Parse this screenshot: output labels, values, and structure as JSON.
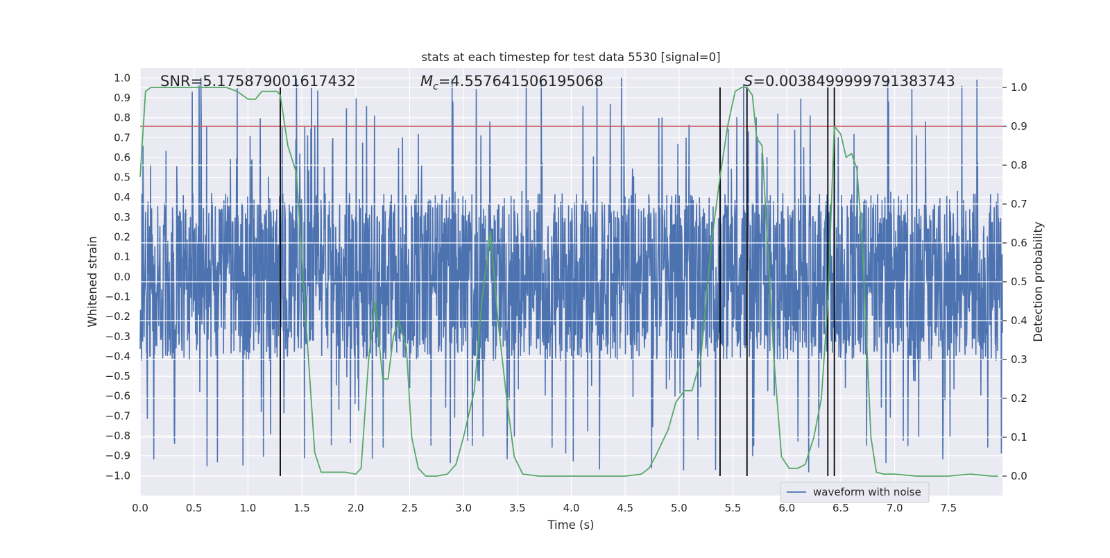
{
  "chart_data": {
    "type": "line",
    "title": "stats at each timestep for test data 5530 [signal=0]",
    "xlabel": "Time (s)",
    "ylabel_left": "Whitened strain",
    "ylabel_right": "Detection probability",
    "xlim": [
      0.0,
      8.0
    ],
    "ylim_left": [
      -1.1,
      1.05
    ],
    "ylim_right": [
      -0.05,
      1.05
    ],
    "x_ticks": [
      0.0,
      0.5,
      1.0,
      1.5,
      2.0,
      2.5,
      3.0,
      3.5,
      4.0,
      4.5,
      5.0,
      5.5,
      6.0,
      6.5,
      7.0,
      7.5
    ],
    "x_tick_labels": [
      "0.0",
      "0.5",
      "1.0",
      "1.5",
      "2.0",
      "2.5",
      "3.0",
      "3.5",
      "4.0",
      "4.5",
      "5.0",
      "5.5",
      "6.0",
      "6.5",
      "7.0",
      "7.5"
    ],
    "y_left_ticks": [
      1.0,
      0.9,
      0.8,
      0.7,
      0.6,
      0.5,
      0.4,
      0.3,
      0.2,
      0.1,
      0.0,
      -0.1,
      -0.2,
      -0.3,
      -0.4,
      -0.5,
      -0.6,
      -0.7,
      -0.8,
      -0.9,
      -1.0
    ],
    "y_left_tick_labels": [
      "1.0",
      "0.9",
      "0.8",
      "0.7",
      "0.6",
      "0.5",
      "0.4",
      "0.3",
      "0.2",
      "0.1",
      "0.0",
      "−0.1",
      "−0.2",
      "−0.3",
      "−0.4",
      "−0.5",
      "−0.6",
      "−0.7",
      "−0.8",
      "−0.9",
      "−1.0"
    ],
    "y_right_ticks": [
      1.0,
      0.9,
      0.8,
      0.7,
      0.6,
      0.5,
      0.4,
      0.3,
      0.2,
      0.1,
      0.0
    ],
    "y_right_tick_labels": [
      "1.0",
      "0.9",
      "0.8",
      "0.7",
      "0.6",
      "0.5",
      "0.4",
      "0.3",
      "0.2",
      "0.1",
      "0.0"
    ],
    "annotations": {
      "snr": "SNR=5.175879001617432",
      "mc_symbol": "M",
      "mc_subscript": "c",
      "mc_value": "=4.557641506195068",
      "s_symbol": "S",
      "s_value": "=0.0038499999791383743"
    },
    "legend": {
      "label": "waveform with noise",
      "placement": "lower-right"
    },
    "threshold": {
      "value": 0.9,
      "axis": "right",
      "color": "#C44E52"
    },
    "vertical_markers": [
      1.3,
      5.38,
      5.63,
      6.38,
      6.44
    ],
    "series": [
      {
        "name": "waveform with noise",
        "axis": "left",
        "color": "#4C72B0",
        "kind": "noise",
        "points": 2400,
        "seed": 5530,
        "core_amplitude": 0.4,
        "max_abs": 1.0
      },
      {
        "name": "detection probability",
        "axis": "right",
        "color": "#55A868",
        "t": [
          0.0,
          0.05,
          0.1,
          0.2,
          0.3,
          0.5,
          0.7,
          0.8,
          0.9,
          1.0,
          1.07,
          1.13,
          1.2,
          1.27,
          1.3,
          1.37,
          1.45,
          1.55,
          1.62,
          1.68,
          1.75,
          1.82,
          1.9,
          2.0,
          2.05,
          2.12,
          2.18,
          2.25,
          2.3,
          2.35,
          2.4,
          2.47,
          2.52,
          2.58,
          2.65,
          2.75,
          2.85,
          2.93,
          3.0,
          3.1,
          3.17,
          3.25,
          3.32,
          3.4,
          3.47,
          3.55,
          3.7,
          3.9,
          4.1,
          4.3,
          4.5,
          4.65,
          4.72,
          4.78,
          4.83,
          4.9,
          4.97,
          5.05,
          5.12,
          5.2,
          5.3,
          5.38,
          5.45,
          5.52,
          5.58,
          5.63,
          5.68,
          5.72,
          5.77,
          5.82,
          5.88,
          5.95,
          6.02,
          6.1,
          6.17,
          6.25,
          6.32,
          6.38,
          6.44,
          6.5,
          6.55,
          6.6,
          6.65,
          6.7,
          6.78,
          6.83,
          6.9,
          7.0,
          7.2,
          7.5,
          7.7,
          7.9,
          7.96
        ],
        "p": [
          0.77,
          0.99,
          1.0,
          1.0,
          1.0,
          1.0,
          1.0,
          1.0,
          0.99,
          0.97,
          0.97,
          0.99,
          0.99,
          0.99,
          0.98,
          0.85,
          0.78,
          0.35,
          0.06,
          0.01,
          0.01,
          0.01,
          0.01,
          0.005,
          0.02,
          0.3,
          0.45,
          0.25,
          0.25,
          0.36,
          0.4,
          0.33,
          0.1,
          0.02,
          0.0,
          0.0,
          0.005,
          0.03,
          0.1,
          0.22,
          0.45,
          0.63,
          0.4,
          0.2,
          0.05,
          0.005,
          0.0,
          0.0,
          0.0,
          0.0,
          0.0,
          0.005,
          0.02,
          0.05,
          0.08,
          0.12,
          0.19,
          0.22,
          0.22,
          0.3,
          0.6,
          0.77,
          0.9,
          0.99,
          1.0,
          1.0,
          0.98,
          0.87,
          0.85,
          0.6,
          0.3,
          0.05,
          0.02,
          0.02,
          0.03,
          0.1,
          0.2,
          0.45,
          0.9,
          0.88,
          0.82,
          0.83,
          0.79,
          0.6,
          0.1,
          0.01,
          0.005,
          0.005,
          0.0,
          0.0,
          0.005,
          0.0,
          0.0
        ]
      }
    ]
  }
}
